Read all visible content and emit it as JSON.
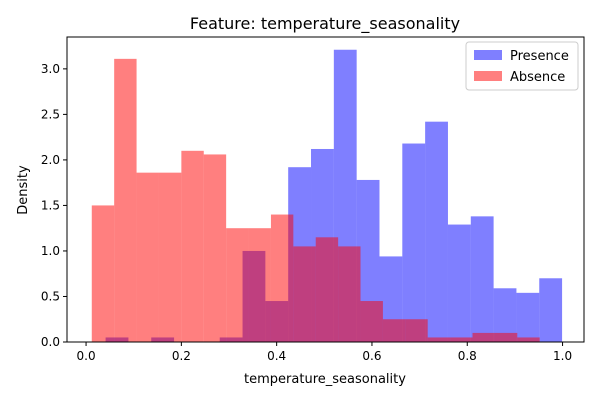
{
  "chart_data": {
    "type": "bar",
    "subtype": "overlapping-histogram",
    "title": "Feature: temperature_seasonality",
    "xlabel": "temperature_seasonality",
    "ylabel": "Density",
    "xlim": [
      -0.04,
      1.045
    ],
    "ylim": [
      0,
      3.35
    ],
    "xticks": [
      0.0,
      0.2,
      0.4,
      0.6,
      0.8,
      1.0
    ],
    "xtick_labels": [
      "0.0",
      "0.2",
      "0.4",
      "0.6",
      "0.8",
      "1.0"
    ],
    "yticks": [
      0.0,
      0.5,
      1.0,
      1.5,
      2.0,
      2.5,
      3.0
    ],
    "ytick_labels": [
      "0.0",
      "0.5",
      "1.0",
      "1.5",
      "2.0",
      "2.5",
      "3.0"
    ],
    "grid": false,
    "legend_position": "upper right",
    "series": [
      {
        "name": "Presence",
        "color": "#0000ff",
        "alpha": 0.5,
        "bin_edges": [
          0.041,
          0.0889,
          0.1368,
          0.1847,
          0.2326,
          0.2805,
          0.3284,
          0.3763,
          0.4242,
          0.4721,
          0.52,
          0.5679,
          0.6158,
          0.6637,
          0.7116,
          0.7595,
          0.8074,
          0.8553,
          0.9032,
          0.9511,
          0.999
        ],
        "values": [
          0.05,
          0.0,
          0.05,
          0.0,
          0.0,
          0.05,
          1.0,
          0.45,
          1.92,
          2.12,
          3.21,
          1.78,
          0.94,
          2.18,
          2.42,
          1.29,
          1.38,
          0.59,
          0.54,
          0.7
        ]
      },
      {
        "name": "Absence",
        "color": "#ff0000",
        "alpha": 0.5,
        "bin_edges": [
          0.012,
          0.059,
          0.106,
          0.153,
          0.2,
          0.247,
          0.294,
          0.341,
          0.388,
          0.435,
          0.482,
          0.529,
          0.576,
          0.623,
          0.67,
          0.717,
          0.764,
          0.811,
          0.858,
          0.905,
          0.952
        ],
        "values": [
          1.5,
          3.11,
          1.86,
          1.86,
          2.1,
          2.06,
          1.25,
          1.25,
          1.4,
          1.05,
          1.15,
          1.05,
          0.45,
          0.25,
          0.25,
          0.05,
          0.05,
          0.1,
          0.1,
          0.05
        ]
      }
    ]
  }
}
